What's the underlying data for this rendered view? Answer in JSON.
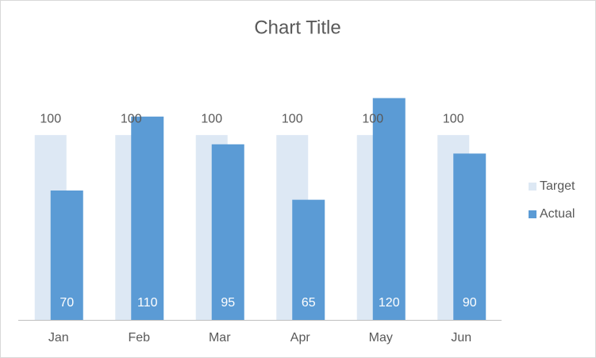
{
  "chart_data": {
    "type": "bar",
    "title": "Chart Title",
    "categories": [
      "Jan",
      "Feb",
      "Mar",
      "Apr",
      "May",
      "Jun"
    ],
    "series": [
      {
        "name": "Target",
        "color": "#dde8f4",
        "values": [
          100,
          100,
          100,
          100,
          100,
          100
        ]
      },
      {
        "name": "Actual",
        "color": "#5b9bd5",
        "values": [
          70,
          110,
          95,
          65,
          120,
          90
        ]
      }
    ],
    "ylim": [
      0,
      140
    ],
    "legend": "right"
  }
}
